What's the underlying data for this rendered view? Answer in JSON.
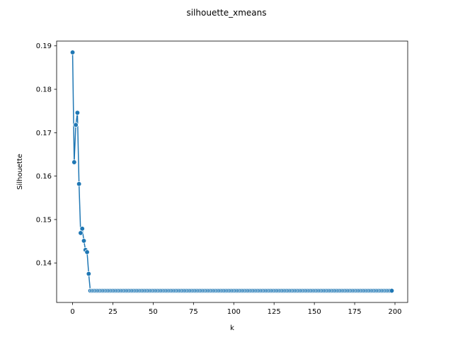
{
  "chart_data": {
    "type": "line",
    "title": "silhouette_xmeans",
    "xlabel": "k",
    "ylabel": "Silhouette",
    "xlim": [
      -9.9,
      207.9
    ],
    "ylim": [
      0.1309,
      0.1911
    ],
    "xticks": [
      0,
      25,
      50,
      75,
      100,
      125,
      150,
      175,
      200
    ],
    "yticks": [
      0.14,
      0.15,
      0.16,
      0.17,
      0.18,
      0.19
    ],
    "x_start": 0,
    "x_end": 198,
    "head_values": [
      0.1885,
      0.1632,
      0.1718,
      0.1746,
      0.1582,
      0.1469,
      0.1479,
      0.1451,
      0.143,
      0.1425,
      0.1375
    ],
    "tail_value": 0.1336,
    "series_color": "#1f77b4",
    "grid": false,
    "legend": "none"
  }
}
